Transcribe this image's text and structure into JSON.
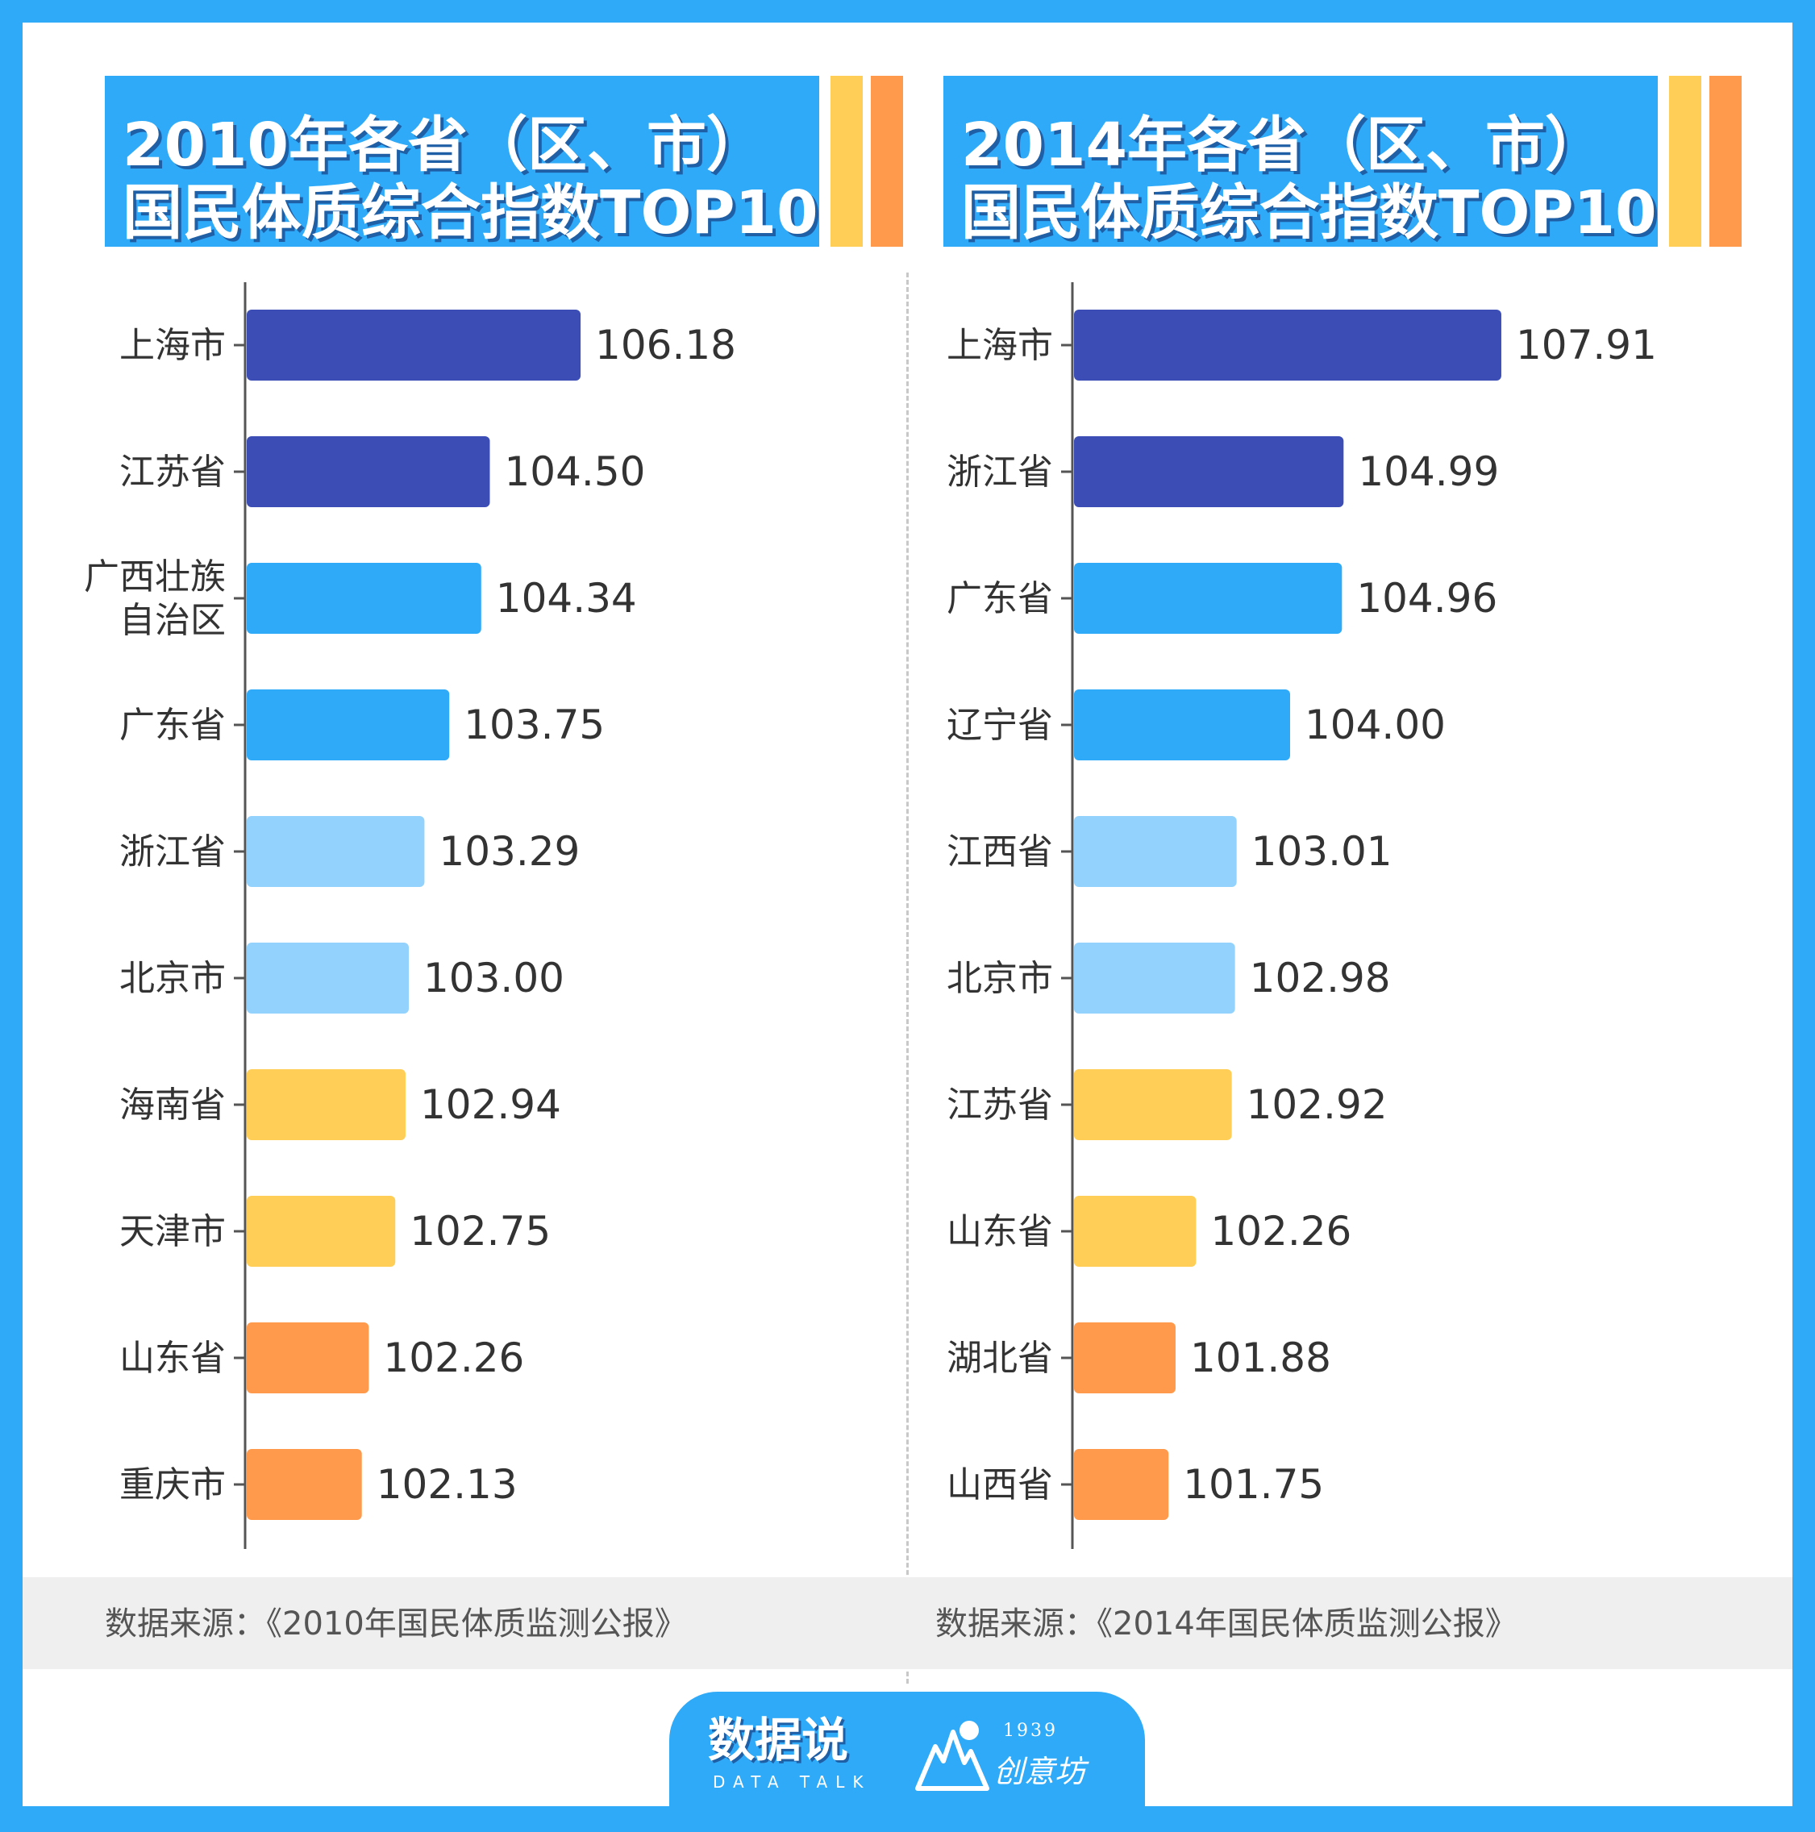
{
  "colors": {
    "background": "#2EAAF8",
    "dark_blue": "#3C4EB5",
    "blue": "#2EAAF8",
    "light_blue": "#93D2FC",
    "yellow": "#FFCE57",
    "orange": "#FF9A4C"
  },
  "chart_data": [
    {
      "type": "bar",
      "orientation": "horizontal",
      "title_lines": [
        "2010年各省（区、市）",
        "国民体质综合指数TOP10"
      ],
      "categories": [
        "上海市",
        "江苏省",
        "广西壮族自治区",
        "广东省",
        "浙江省",
        "北京市",
        "海南省",
        "天津市",
        "山东省",
        "重庆市"
      ],
      "category_label_lines": [
        [
          "上海市"
        ],
        [
          "江苏省"
        ],
        [
          "广西壮族",
          "自治区"
        ],
        [
          "广东省"
        ],
        [
          "浙江省"
        ],
        [
          "北京市"
        ],
        [
          "海南省"
        ],
        [
          "天津市"
        ],
        [
          "山东省"
        ],
        [
          "重庆市"
        ]
      ],
      "values": [
        106.18,
        104.5,
        104.34,
        103.75,
        103.29,
        103.0,
        102.94,
        102.75,
        102.26,
        102.13
      ],
      "value_labels": [
        "106.18",
        "104.50",
        "104.34",
        "103.75",
        "103.29",
        "103.00",
        "102.94",
        "102.75",
        "102.26",
        "102.13"
      ],
      "bar_color_keys": [
        "dark_blue",
        "dark_blue",
        "blue",
        "blue",
        "light_blue",
        "light_blue",
        "yellow",
        "yellow",
        "orange",
        "orange"
      ],
      "source": "数据来源：《2010年国民体质监测公报》"
    },
    {
      "type": "bar",
      "orientation": "horizontal",
      "title_lines": [
        "2014年各省（区、市）",
        "国民体质综合指数TOP10"
      ],
      "categories": [
        "上海市",
        "浙江省",
        "广东省",
        "辽宁省",
        "江西省",
        "北京市",
        "江苏省",
        "山东省",
        "湖北省",
        "山西省"
      ],
      "category_label_lines": [
        [
          "上海市"
        ],
        [
          "浙江省"
        ],
        [
          "广东省"
        ],
        [
          "辽宁省"
        ],
        [
          "江西省"
        ],
        [
          "北京市"
        ],
        [
          "江苏省"
        ],
        [
          "山东省"
        ],
        [
          "湖北省"
        ],
        [
          "山西省"
        ]
      ],
      "values": [
        107.91,
        104.99,
        104.96,
        104.0,
        103.01,
        102.98,
        102.92,
        102.26,
        101.88,
        101.75
      ],
      "value_labels": [
        "107.91",
        "104.99",
        "104.96",
        "104.00",
        "103.01",
        "102.98",
        "102.92",
        "102.26",
        "101.88",
        "101.75"
      ],
      "bar_color_keys": [
        "dark_blue",
        "dark_blue",
        "blue",
        "blue",
        "light_blue",
        "light_blue",
        "yellow",
        "yellow",
        "orange",
        "orange"
      ],
      "source": "数据来源：《2014年国民体质监测公报》"
    }
  ],
  "logo": {
    "main": "数据说",
    "sub": "DATA TALK",
    "year": "1939",
    "name": "创意坊"
  }
}
